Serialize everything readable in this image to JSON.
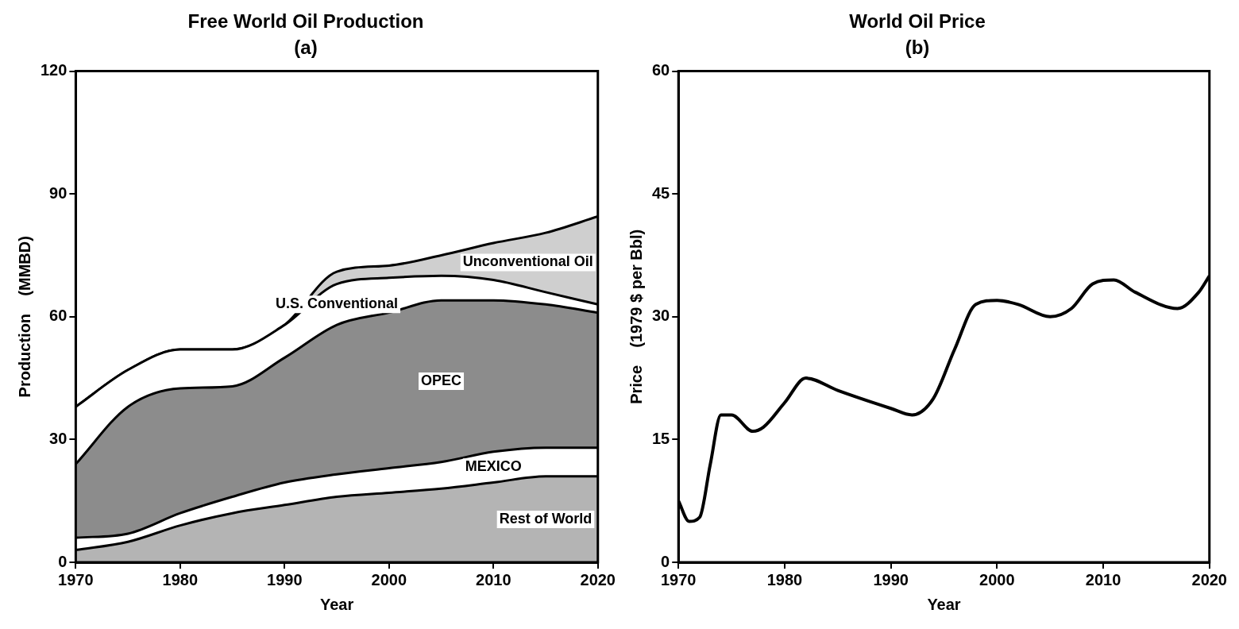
{
  "chart_data": [
    {
      "type": "area",
      "title": "Free World Oil Production",
      "subtitle": "(a)",
      "xlabel": "Year",
      "ylabel": "Production    (MMBD)",
      "stacked": true,
      "x": [
        1970,
        1975,
        1980,
        1985,
        1990,
        1995,
        2000,
        2005,
        2010,
        2015,
        2020
      ],
      "series": [
        {
          "name": "Rest of World",
          "color": "#b4b4b4",
          "values": [
            3,
            5,
            9,
            12,
            14,
            16,
            17,
            18,
            19.5,
            21,
            21
          ]
        },
        {
          "name": "MEXICO",
          "color": "#ffffff",
          "values": [
            3,
            2,
            3,
            4,
            5.5,
            5.5,
            6,
            6.5,
            7.5,
            7,
            7
          ]
        },
        {
          "name": "OPEC",
          "color": "#8c8c8c",
          "values": [
            18,
            31,
            30.5,
            27,
            30.5,
            36.5,
            38,
            39.5,
            37,
            35,
            33
          ]
        },
        {
          "name": "U.S. Conventional",
          "color": "#ffffff",
          "values": [
            14,
            9,
            9.5,
            9,
            8,
            10,
            8.5,
            6,
            5,
            3,
            2
          ]
        },
        {
          "name": "Unconventional Oil",
          "color": "#cfcfcf",
          "values": [
            0,
            0,
            0,
            0,
            0,
            3,
            3,
            5,
            9,
            14.5,
            21.5
          ]
        }
      ],
      "xlim": [
        1970,
        2020
      ],
      "xticks": [
        1970,
        1980,
        1990,
        2000,
        2010,
        2020
      ],
      "ylim": [
        0,
        120
      ],
      "yticks": [
        0,
        30,
        60,
        90,
        120
      ],
      "grid": false,
      "legend": false
    },
    {
      "type": "line",
      "title": "World Oil Price",
      "subtitle": "(b)",
      "xlabel": "Year",
      "ylabel": "Price    (1979 $ per Bbl)",
      "x": [
        1970,
        1971,
        1972,
        1973,
        1974,
        1975,
        1977,
        1978,
        1980,
        1982,
        1985,
        1990,
        1992,
        1994,
        1996,
        1998,
        2000,
        2002,
        2005,
        2007,
        2009,
        2011,
        2013,
        2017,
        2019,
        2020
      ],
      "series": [
        {
          "color": "#000000",
          "values": [
            7.5,
            5,
            5.5,
            12,
            18,
            18,
            16,
            16.5,
            19.5,
            22.5,
            21,
            18.8,
            18,
            20,
            26,
            31.5,
            32,
            31.5,
            30,
            31,
            34,
            34.5,
            33,
            31,
            33,
            35
          ]
        }
      ],
      "xlim": [
        1970,
        2020
      ],
      "xticks": [
        1970,
        1980,
        1990,
        2000,
        2010,
        2020
      ],
      "ylim": [
        0,
        60
      ],
      "yticks": [
        0,
        15,
        30,
        45,
        60
      ],
      "grid": false,
      "legend": false
    }
  ]
}
